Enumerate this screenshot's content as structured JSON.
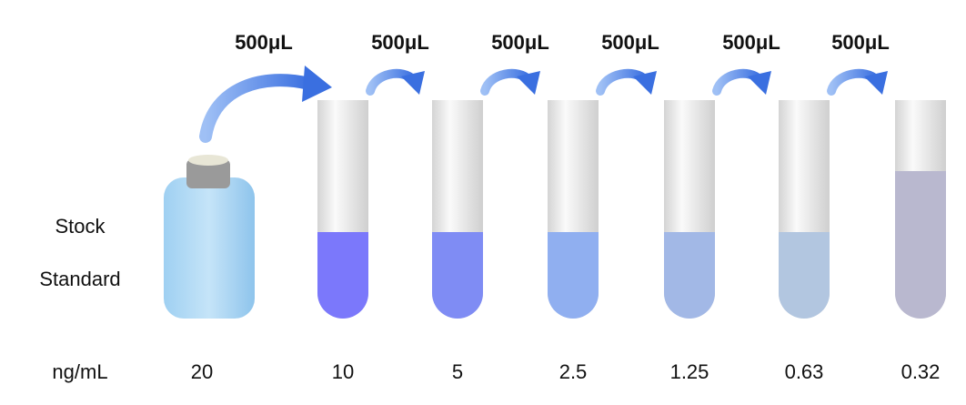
{
  "stock_label": [
    "Stock",
    "Standard"
  ],
  "unit": "ng/mL",
  "stock_concentration": "20",
  "transfers": [
    "500μL",
    "500μL",
    "500μL",
    "500μL",
    "500μL",
    "500μL"
  ],
  "tubes": [
    "10",
    "5",
    "2.5",
    "1.25",
    "0.63",
    "0.32"
  ]
}
